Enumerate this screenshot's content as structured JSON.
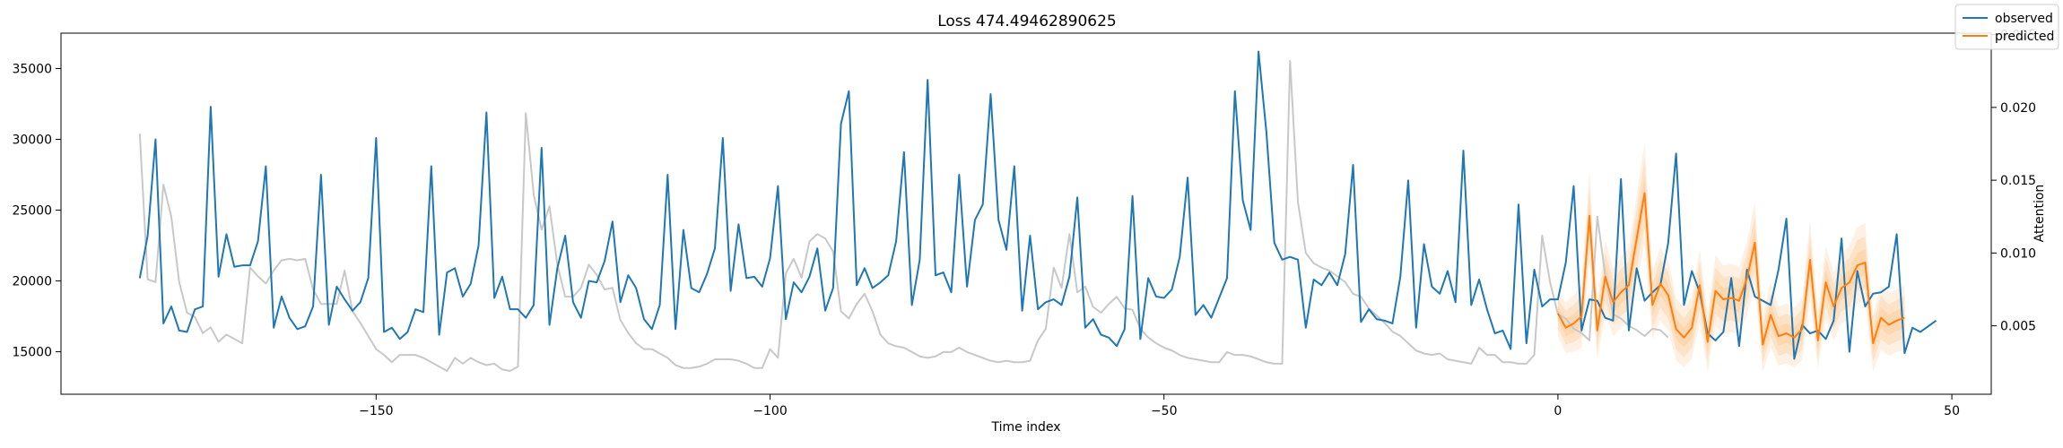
{
  "chart_data": {
    "type": "line",
    "title": "Loss 474.49462890625",
    "xlabel": "Time index",
    "ylabel": "",
    "y2label": "Attention",
    "xlim": [
      -190,
      55
    ],
    "ylim": [
      12000,
      37500
    ],
    "y2lim": [
      0.0003,
      0.0251
    ],
    "xticks": [
      -150,
      -100,
      -50,
      0,
      50
    ],
    "yticks": [
      15000,
      20000,
      25000,
      30000,
      35000
    ],
    "y2ticks": [
      0.005,
      0.01,
      0.015,
      0.02,
      0.025
    ],
    "legend_position": "top-right",
    "legend": [
      {
        "name": "observed",
        "color": "#1f77b4"
      },
      {
        "name": "predicted",
        "color": "#ff7f0e"
      }
    ],
    "colors": {
      "observed": "#1f77b4",
      "predicted": "#ff7f0e",
      "attention": "#c8c8c8",
      "interval": "#fdd0a2"
    },
    "series": [
      {
        "key": "observed",
        "x_start": -180,
        "values": [
          20200,
          23200,
          30000,
          17000,
          18200,
          16500,
          16400,
          18000,
          18200,
          32300,
          20300,
          23300,
          21000,
          21100,
          21100,
          22800,
          28100,
          16700,
          18900,
          17400,
          16600,
          16800,
          18200,
          27500,
          16900,
          19600,
          18700,
          17900,
          18500,
          20200,
          30100,
          16400,
          16700,
          15900,
          16400,
          18000,
          17800,
          28100,
          16200,
          20600,
          20900,
          18900,
          19800,
          22500,
          31900,
          18800,
          20300,
          18000,
          18000,
          17400,
          18300,
          29400,
          16900,
          20900,
          23200,
          18500,
          17400,
          20000,
          19900,
          21400,
          24200,
          18500,
          20400,
          19500,
          17300,
          16600,
          18300,
          27500,
          16600,
          23600,
          19500,
          19200,
          20500,
          22300,
          30100,
          19300,
          24000,
          20200,
          20300,
          19600,
          21600,
          26700,
          17300,
          19900,
          19200,
          20300,
          22300,
          17900,
          19500,
          31100,
          33400,
          19700,
          20900,
          19500,
          19900,
          20400,
          22800,
          29100,
          18300,
          21500,
          34200,
          20400,
          20600,
          19200,
          27500,
          19600,
          24300,
          25400,
          33200,
          24300,
          22200,
          28100,
          17900,
          23200,
          18000,
          18500,
          18700,
          18300,
          20300,
          25900,
          16700,
          17300,
          16200,
          16000,
          15400,
          16600,
          26000,
          15900,
          20200,
          18900,
          18800,
          19400,
          21700,
          27300,
          17600,
          18300,
          17400,
          18800,
          20200,
          33400,
          25700,
          23600,
          36200,
          30500,
          22700,
          21500,
          21700,
          21500,
          16700,
          20100,
          19700,
          20600,
          19700,
          21900,
          28200,
          17100,
          18000,
          17300,
          17200,
          17000,
          20300,
          27100,
          16700,
          22600,
          19600,
          19100,
          20700,
          18500,
          29200,
          18300,
          20100,
          18000,
          16300,
          16500,
          15200,
          25400,
          15600,
          20800,
          18200,
          18700,
          18700,
          21300,
          26700,
          16500,
          18700,
          18600,
          17400,
          17200,
          27200,
          16500,
          20900,
          18600,
          19200,
          19700,
          22700,
          29000,
          18300,
          20700,
          19200,
          16300,
          15800,
          16400,
          20200,
          15400,
          20800,
          18900,
          18600,
          18300,
          20800,
          24400,
          14500,
          16900,
          16300,
          16500,
          15900,
          17200,
          23000,
          15000,
          20700,
          18200,
          19100,
          19200,
          19600,
          23300,
          14900,
          16700,
          16400,
          16800,
          17200
        ]
      },
      {
        "key": "predicted",
        "x_start": 0,
        "values": [
          17700,
          16700,
          17000,
          17500,
          24600,
          16500,
          20300,
          18500,
          19200,
          19700,
          23000,
          26200,
          18300,
          19800,
          19000,
          16600,
          16000,
          16700,
          19700,
          15700,
          19300,
          18700,
          18800,
          18600,
          20200,
          22700,
          15500,
          17600,
          16100,
          16300,
          16000,
          16600,
          21500,
          15800,
          19900,
          18200,
          19500,
          19900,
          21100,
          21300,
          15600,
          17400,
          16900,
          17200,
          17400
        ]
      },
      {
        "key": "attention",
        "x_start": -180,
        "values": [
          0.0182,
          0.0082,
          0.008,
          0.0147,
          0.0125,
          0.008,
          0.0059,
          0.0056,
          0.0045,
          0.0049,
          0.0039,
          0.0044,
          0.0041,
          0.0038,
          0.009,
          0.0084,
          0.0079,
          0.0088,
          0.0095,
          0.0096,
          0.0095,
          0.0096,
          0.0075,
          0.0065,
          0.0065,
          0.0065,
          0.0088,
          0.006,
          0.0052,
          0.0043,
          0.0034,
          0.003,
          0.0025,
          0.003,
          0.003,
          0.003,
          0.0028,
          0.0025,
          0.0022,
          0.0019,
          0.0028,
          0.0024,
          0.0028,
          0.0025,
          0.0023,
          0.0024,
          0.002,
          0.0019,
          0.0022,
          0.0196,
          0.014,
          0.0116,
          0.0132,
          0.0092,
          0.007,
          0.007,
          0.0076,
          0.0092,
          0.0085,
          0.0075,
          0.0076,
          0.0054,
          0.0045,
          0.0038,
          0.0034,
          0.0034,
          0.0031,
          0.0028,
          0.0023,
          0.0021,
          0.0021,
          0.0022,
          0.0024,
          0.0027,
          0.0027,
          0.0027,
          0.0026,
          0.0024,
          0.0021,
          0.0021,
          0.0034,
          0.0028,
          0.0086,
          0.0096,
          0.0083,
          0.0108,
          0.0113,
          0.011,
          0.0101,
          0.006,
          0.0055,
          0.0065,
          0.0072,
          0.006,
          0.0044,
          0.0038,
          0.0036,
          0.0035,
          0.0032,
          0.0029,
          0.0028,
          0.0029,
          0.0032,
          0.0032,
          0.0035,
          0.0032,
          0.003,
          0.0028,
          0.0026,
          0.0025,
          0.0026,
          0.0025,
          0.0025,
          0.0026,
          0.004,
          0.0048,
          0.009,
          0.0076,
          0.0113,
          0.0073,
          0.0077,
          0.0063,
          0.0059,
          0.0065,
          0.007,
          0.0062,
          0.0061,
          0.0048,
          0.0042,
          0.0038,
          0.0035,
          0.0033,
          0.003,
          0.0028,
          0.0027,
          0.0026,
          0.0025,
          0.0025,
          0.0032,
          0.003,
          0.003,
          0.0029,
          0.0027,
          0.0025,
          0.0024,
          0.0024,
          0.0232,
          0.0135,
          0.01,
          0.0093,
          0.009,
          0.0088,
          0.0084,
          0.008,
          0.0072,
          0.007,
          0.0062,
          0.0057,
          0.0052,
          0.0046,
          0.0043,
          0.0038,
          0.0033,
          0.0031,
          0.003,
          0.0031,
          0.0027,
          0.0026,
          0.0025,
          0.0024,
          0.0035,
          0.003,
          0.003,
          0.0025,
          0.0025,
          0.0024,
          0.0024,
          0.003,
          0.0112,
          0.008,
          0.0058,
          0.0055,
          0.0048,
          0.0045,
          0.004,
          0.0125,
          0.0085,
          0.0058,
          0.0055,
          0.005,
          0.0047,
          0.0043,
          0.0048,
          0.0047,
          0.0042
        ]
      }
    ],
    "interval": {
      "x_start": 0,
      "spread_by_step": [
        1600,
        1800,
        2000,
        2200,
        3200,
        2100,
        2600,
        2400,
        2500,
        2600,
        3100,
        3600,
        2400,
        2600,
        2500,
        2200,
        2100,
        2200,
        2600,
        2100,
        2500,
        2400,
        2400,
        2400,
        2600,
        2900,
        2000,
        2300,
        2100,
        2100,
        2100,
        2200,
        2800,
        2000,
        2600,
        2400,
        2500,
        2600,
        2700,
        2800,
        2000,
        2300,
        2200,
        2200,
        2300
      ]
    }
  }
}
